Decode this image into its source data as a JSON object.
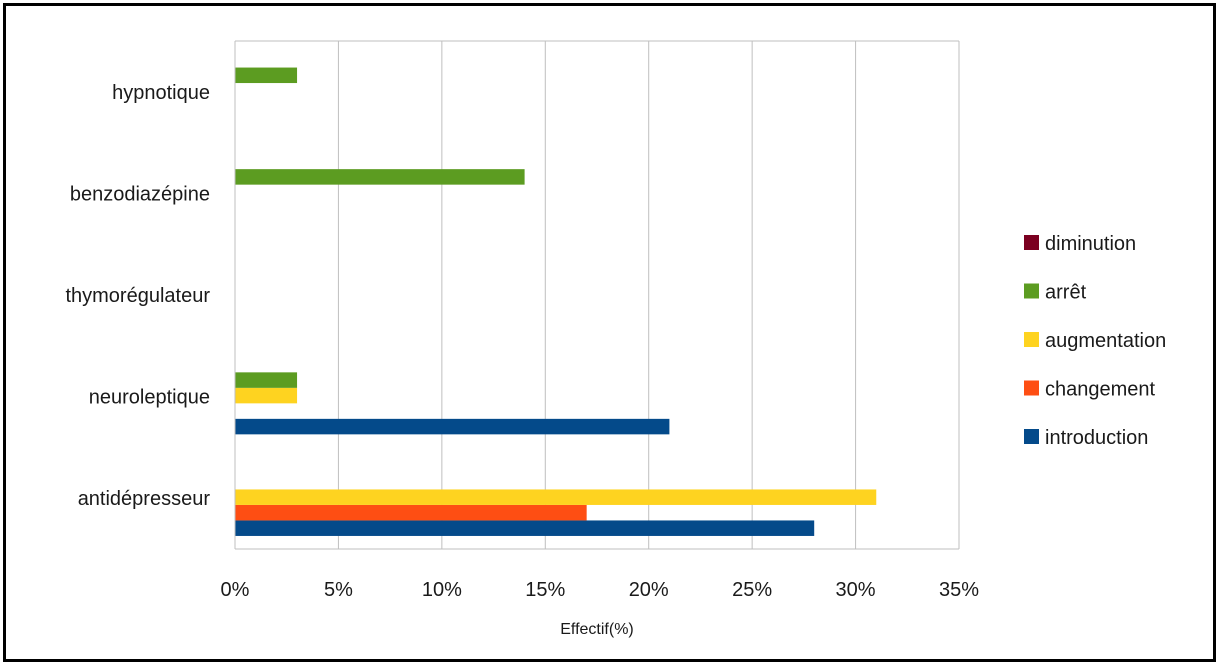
{
  "chart_data": {
    "type": "bar",
    "orientation": "horizontal",
    "categories": [
      "antidépresseur",
      "neuroleptique",
      "thymorégulateur",
      "benzodiazépine",
      "hypnotique"
    ],
    "series": [
      {
        "name": "introduction",
        "color": "#044a8a",
        "values": [
          28,
          21,
          0,
          0,
          0
        ]
      },
      {
        "name": "changement",
        "color": "#fe4e13",
        "values": [
          17,
          0,
          0,
          0,
          0
        ]
      },
      {
        "name": "augmentation",
        "color": "#fed320",
        "values": [
          31,
          3,
          0,
          0,
          0
        ]
      },
      {
        "name": "arrêt",
        "color": "#5c9c21",
        "values": [
          0,
          3,
          0,
          14,
          3
        ]
      },
      {
        "name": "diminution",
        "color": "#7b0020",
        "values": [
          0,
          0,
          0,
          0,
          0
        ]
      }
    ],
    "xlim": [
      0,
      35
    ],
    "xticks": [
      "0%",
      "5%",
      "10%",
      "15%",
      "20%",
      "25%",
      "30%",
      "35%"
    ],
    "xlabel": "Effectif(%)",
    "grid": "vertical",
    "legend_position": "right",
    "legend_order": [
      "diminution",
      "arrêt",
      "augmentation",
      "changement",
      "introduction"
    ]
  }
}
